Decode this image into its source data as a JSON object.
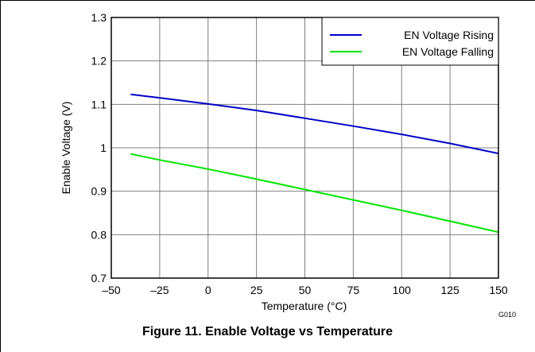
{
  "figure_caption": "Figure 11. Enable Voltage vs Temperature",
  "figure_code": "G010",
  "colors": {
    "rising": "#0000c8",
    "falling": "#00e600",
    "grid": "#7f7f7f",
    "axis": "#000000",
    "background": "#ffffff"
  },
  "chart_data": {
    "type": "line",
    "title": "",
    "xlabel": "Temperature (°C)",
    "ylabel": "Enable Voltage (V)",
    "xlim": [
      -50,
      150
    ],
    "ylim": [
      0.7,
      1.3
    ],
    "x_ticks": [
      -50,
      -25,
      0,
      25,
      50,
      75,
      100,
      125,
      150
    ],
    "x_tick_labels": [
      "–50",
      "–25",
      "0",
      "25",
      "50",
      "75",
      "100",
      "125",
      "150"
    ],
    "y_ticks": [
      0.7,
      0.8,
      0.9,
      1.0,
      1.1,
      1.2,
      1.3
    ],
    "y_tick_labels": [
      "0.7",
      "0.8",
      "0.9",
      "1",
      "1.1",
      "1.2",
      "1.3"
    ],
    "grid": true,
    "legend_position": "top-right",
    "series": [
      {
        "name": "EN Voltage Rising",
        "color_key": "rising",
        "x": [
          -40,
          -25,
          0,
          25,
          50,
          75,
          100,
          125,
          150
        ],
        "y": [
          1.123,
          1.115,
          1.101,
          1.086,
          1.068,
          1.05,
          1.031,
          1.01,
          0.987
        ]
      },
      {
        "name": "EN Voltage Falling",
        "color_key": "falling",
        "x": [
          -40,
          -25,
          0,
          25,
          50,
          75,
          100,
          125,
          150
        ],
        "y": [
          0.986,
          0.972,
          0.951,
          0.928,
          0.904,
          0.88,
          0.856,
          0.831,
          0.806
        ]
      }
    ]
  }
}
